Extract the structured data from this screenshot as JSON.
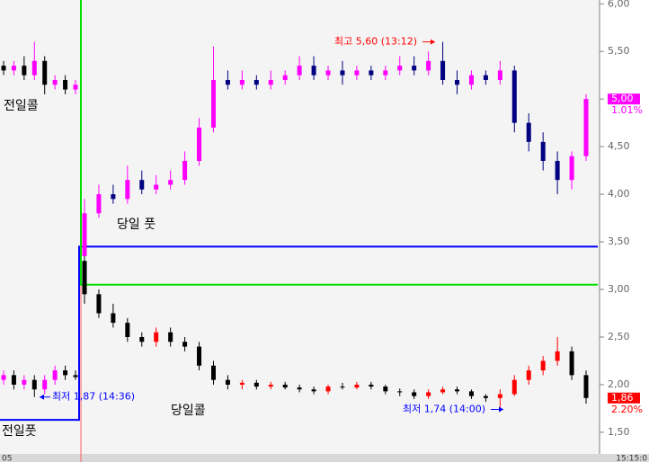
{
  "chart_data": {
    "type": "candlestick",
    "ylim": [
      1.32,
      6.04
    ],
    "yticks": [
      {
        "value": 6.0,
        "label": "6,00"
      },
      {
        "value": 5.5,
        "label": "5,50"
      },
      {
        "value": 5.0,
        "label": "5,00"
      },
      {
        "value": 4.5,
        "label": "4,50"
      },
      {
        "value": 4.0,
        "label": "4,00"
      },
      {
        "value": 3.5,
        "label": "3,50"
      },
      {
        "value": 3.0,
        "label": "3,00"
      },
      {
        "value": 2.5,
        "label": "2,50"
      },
      {
        "value": 2.0,
        "label": "2,00"
      },
      {
        "value": 1.5,
        "label": "1,50"
      }
    ],
    "x_start_label": "05",
    "x_end_label": "15:15:0",
    "series": [
      {
        "name": "전일콜",
        "session": "prev",
        "up_color": "#ff00ff",
        "down_color": "#000000",
        "ohlc": [
          [
            5.35,
            5.4,
            5.25,
            5.3
          ],
          [
            5.3,
            5.4,
            5.25,
            5.35
          ],
          [
            5.35,
            5.45,
            5.2,
            5.25
          ],
          [
            5.25,
            5.6,
            5.2,
            5.4
          ],
          [
            5.4,
            5.45,
            5.05,
            5.15
          ],
          [
            5.15,
            5.25,
            5.1,
            5.2
          ],
          [
            5.2,
            5.25,
            5.05,
            5.1
          ],
          [
            5.1,
            5.2,
            5.05,
            5.15
          ]
        ]
      },
      {
        "name": "전일풋",
        "session": "prev",
        "up_color": "#ff00ff",
        "down_color": "#000000",
        "ohlc": [
          [
            2.05,
            2.15,
            2.0,
            2.1
          ],
          [
            2.1,
            2.15,
            1.95,
            2.0
          ],
          [
            2.0,
            2.1,
            1.95,
            2.05
          ],
          [
            2.05,
            2.1,
            1.87,
            1.95
          ],
          [
            1.95,
            2.1,
            1.9,
            2.05
          ],
          [
            2.05,
            2.2,
            2.0,
            2.15
          ],
          [
            2.15,
            2.2,
            2.05,
            2.1
          ],
          [
            2.1,
            2.15,
            2.05,
            2.08
          ]
        ]
      },
      {
        "name": "당일 풋",
        "session": "today",
        "up_color": "#ff00ff",
        "down_color": "#000080",
        "ohlc": [
          [
            3.35,
            3.95,
            3.3,
            3.8
          ],
          [
            3.8,
            4.1,
            3.75,
            4.0
          ],
          [
            4.0,
            4.1,
            3.9,
            3.95
          ],
          [
            3.95,
            4.3,
            3.9,
            4.15
          ],
          [
            4.15,
            4.25,
            4.0,
            4.05
          ],
          [
            4.05,
            4.2,
            4.0,
            4.1
          ],
          [
            4.1,
            4.25,
            4.05,
            4.15
          ],
          [
            4.15,
            4.45,
            4.1,
            4.35
          ],
          [
            4.35,
            4.8,
            4.3,
            4.7
          ],
          [
            4.7,
            5.55,
            4.65,
            5.2
          ],
          [
            5.2,
            5.3,
            5.1,
            5.15
          ],
          [
            5.15,
            5.3,
            5.1,
            5.2
          ],
          [
            5.2,
            5.25,
            5.1,
            5.15
          ],
          [
            5.15,
            5.3,
            5.1,
            5.2
          ],
          [
            5.2,
            5.3,
            5.15,
            5.25
          ],
          [
            5.25,
            5.45,
            5.2,
            5.35
          ],
          [
            5.35,
            5.45,
            5.2,
            5.25
          ],
          [
            5.25,
            5.35,
            5.2,
            5.3
          ],
          [
            5.3,
            5.4,
            5.15,
            5.25
          ],
          [
            5.25,
            5.35,
            5.2,
            5.3
          ],
          [
            5.3,
            5.35,
            5.2,
            5.25
          ],
          [
            5.25,
            5.35,
            5.2,
            5.3
          ],
          [
            5.3,
            5.45,
            5.25,
            5.35
          ],
          [
            5.35,
            5.45,
            5.25,
            5.3
          ],
          [
            5.3,
            5.5,
            5.25,
            5.4
          ],
          [
            5.4,
            5.6,
            5.15,
            5.2
          ],
          [
            5.2,
            5.3,
            5.05,
            5.15
          ],
          [
            5.15,
            5.3,
            5.1,
            5.25
          ],
          [
            5.25,
            5.3,
            5.15,
            5.2
          ],
          [
            5.2,
            5.4,
            5.15,
            5.3
          ],
          [
            5.3,
            5.35,
            4.65,
            4.75
          ],
          [
            4.75,
            4.85,
            4.45,
            4.55
          ],
          [
            4.55,
            4.65,
            4.25,
            4.35
          ],
          [
            4.35,
            4.45,
            4.0,
            4.15
          ],
          [
            4.15,
            4.45,
            4.05,
            4.4
          ],
          [
            4.4,
            5.05,
            4.35,
            5.0
          ]
        ]
      },
      {
        "name": "당일콜",
        "session": "today",
        "up_color": "#ff0000",
        "down_color": "#000000",
        "ohlc": [
          [
            3.3,
            3.35,
            2.85,
            2.95
          ],
          [
            2.95,
            3.0,
            2.7,
            2.75
          ],
          [
            2.75,
            2.85,
            2.6,
            2.65
          ],
          [
            2.65,
            2.7,
            2.45,
            2.5
          ],
          [
            2.5,
            2.55,
            2.4,
            2.45
          ],
          [
            2.45,
            2.6,
            2.4,
            2.55
          ],
          [
            2.55,
            2.6,
            2.4,
            2.45
          ],
          [
            2.45,
            2.5,
            2.35,
            2.4
          ],
          [
            2.4,
            2.45,
            2.15,
            2.2
          ],
          [
            2.2,
            2.25,
            2.0,
            2.05
          ],
          [
            2.05,
            2.1,
            1.95,
            2.0
          ],
          [
            2.0,
            2.05,
            1.95,
            2.02
          ],
          [
            2.02,
            2.05,
            1.95,
            1.98
          ],
          [
            1.98,
            2.03,
            1.95,
            2.0
          ],
          [
            2.0,
            2.03,
            1.95,
            1.97
          ],
          [
            1.97,
            2.0,
            1.92,
            1.95
          ],
          [
            1.95,
            1.98,
            1.9,
            1.93
          ],
          [
            1.93,
            2.0,
            1.9,
            1.98
          ],
          [
            1.98,
            2.02,
            1.95,
            1.97
          ],
          [
            1.97,
            2.03,
            1.95,
            2.0
          ],
          [
            2.0,
            2.03,
            1.95,
            1.98
          ],
          [
            1.98,
            2.0,
            1.9,
            1.93
          ],
          [
            1.93,
            1.96,
            1.88,
            1.92
          ],
          [
            1.92,
            1.95,
            1.85,
            1.88
          ],
          [
            1.88,
            1.95,
            1.85,
            1.92
          ],
          [
            1.92,
            1.98,
            1.9,
            1.95
          ],
          [
            1.95,
            1.98,
            1.9,
            1.93
          ],
          [
            1.93,
            1.95,
            1.85,
            1.88
          ],
          [
            1.88,
            1.9,
            1.82,
            1.86
          ],
          [
            1.86,
            1.95,
            1.74,
            1.9
          ],
          [
            1.9,
            2.1,
            1.88,
            2.05
          ],
          [
            2.05,
            2.2,
            2.0,
            2.15
          ],
          [
            2.15,
            2.3,
            2.1,
            2.25
          ],
          [
            2.25,
            2.5,
            2.2,
            2.35
          ],
          [
            2.35,
            2.4,
            2.05,
            2.1
          ],
          [
            2.1,
            2.15,
            1.8,
            1.86
          ]
        ]
      }
    ],
    "levels": [
      {
        "color": "#0000ff",
        "prev": 1.63,
        "today": 3.45
      },
      {
        "color": "#00e000",
        "prev": null,
        "today": 3.05
      }
    ],
    "annotations": [
      {
        "text": "최고 5,60 (13:12)",
        "value": 5.6,
        "color": "#ff0000"
      },
      {
        "text": "최저 1,87 (14:36)",
        "value": 1.87,
        "color": "#0000ff"
      },
      {
        "text": "최저 1,74 (14:00)",
        "value": 1.74,
        "color": "#0000ff"
      }
    ],
    "last_values": [
      {
        "value": 5.0,
        "label": "5,00",
        "change": "1.01%",
        "color": "#ff00ff"
      },
      {
        "value": 1.86,
        "label": "1,86",
        "change": "2.20%",
        "color": "#ff0000"
      }
    ]
  }
}
